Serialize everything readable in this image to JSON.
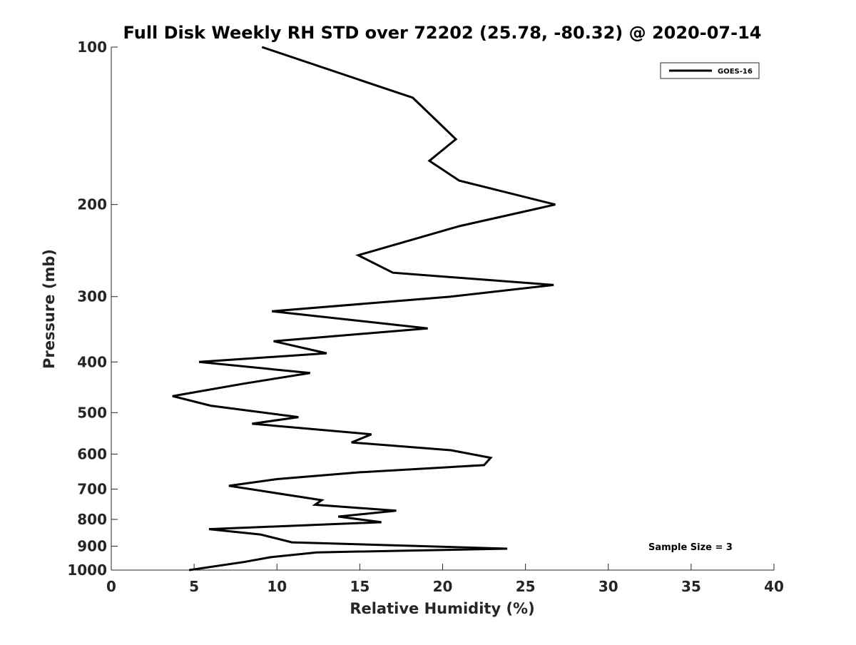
{
  "chart_data": {
    "type": "line",
    "title": "Full Disk Weekly RH STD over 72202 (25.78, -80.32) @ 2020-07-14",
    "xlabel": "Relative Humidity (%)",
    "ylabel": "Pressure (mb)",
    "xlim": [
      0,
      40
    ],
    "ylim": [
      100,
      1000
    ],
    "yscale": "log",
    "y_reversed": true,
    "grid": false,
    "legend_position": "top-right",
    "x_ticks": [
      "0",
      "5",
      "10",
      "15",
      "20",
      "25",
      "30",
      "35",
      "40"
    ],
    "x_tick_values": [
      0,
      5,
      10,
      15,
      20,
      25,
      30,
      35,
      40
    ],
    "y_ticks": [
      "100",
      "200",
      "300",
      "400",
      "500",
      "600",
      "700",
      "800",
      "900",
      "1000"
    ],
    "y_tick_values": [
      100,
      200,
      300,
      400,
      500,
      600,
      700,
      800,
      900,
      1000
    ],
    "annotation": "Sample Size = 3",
    "series": [
      {
        "name": "GOES-16",
        "color": "#000000",
        "x": [
          9.1,
          18.2,
          20.8,
          19.2,
          21.0,
          26.8,
          21.0,
          14.9,
          17.0,
          26.7,
          20.5,
          9.7,
          19.1,
          9.8,
          13.0,
          5.3,
          12.0,
          8.0,
          3.7,
          6.0,
          11.3,
          8.5,
          15.7,
          14.5,
          20.5,
          22.9,
          22.5,
          15.0,
          10.0,
          7.1,
          9.0,
          12.7,
          12.3,
          17.2,
          13.7,
          16.3,
          5.9,
          9.0,
          10.9,
          23.9,
          12.4,
          9.6,
          8.0,
          4.7
        ],
        "y": [
          100,
          125,
          150,
          165,
          180,
          200,
          220,
          250,
          270,
          285,
          300,
          320,
          345,
          365,
          385,
          400,
          420,
          440,
          465,
          485,
          510,
          525,
          550,
          570,
          590,
          610,
          630,
          650,
          670,
          690,
          705,
          735,
          750,
          770,
          790,
          810,
          835,
          855,
          885,
          910,
          925,
          945,
          965,
          1000
        ]
      }
    ]
  }
}
